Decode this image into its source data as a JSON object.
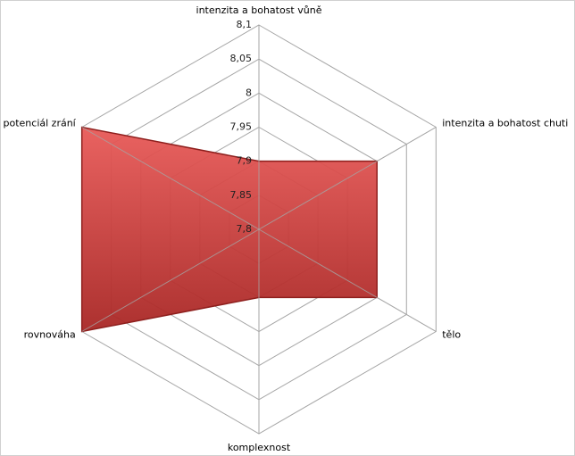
{
  "chart_data": {
    "type": "radar",
    "categories": [
      "intenzita a bohatost vůně",
      "intenzita a bohatost chuti",
      "tělo",
      "komplexnost",
      "rovnováha",
      "potenciál zrání"
    ],
    "values": [
      7.9,
      8.0,
      8.0,
      7.9,
      8.1,
      8.1
    ],
    "color": "#c0302f",
    "rlim": [
      7.8,
      8.1
    ],
    "rticks": [
      {
        "value": 7.8,
        "label": "7,8"
      },
      {
        "value": 7.85,
        "label": "7,85"
      },
      {
        "value": 7.9,
        "label": "7,9"
      },
      {
        "value": 7.95,
        "label": "7,95"
      },
      8,
      {
        "value": 8.05,
        "label": "8,05"
      },
      {
        "value": 8.1,
        "label": "8,1"
      }
    ],
    "grid": true
  }
}
